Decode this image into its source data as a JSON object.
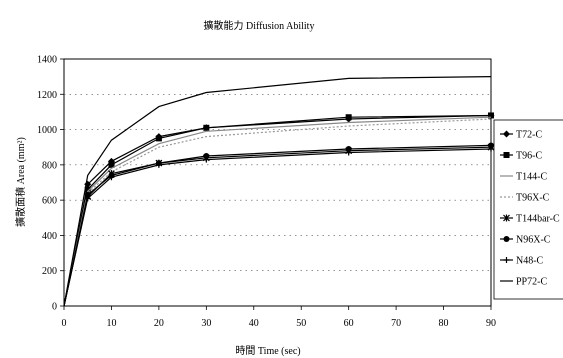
{
  "chart_data": {
    "type": "line",
    "title": "擴散能力 Diffusion Ability",
    "xlabel": "時間 Time (sec)",
    "ylabel": "擴散面積 Area (mm²)",
    "xlim": [
      0,
      90
    ],
    "ylim": [
      0,
      1400
    ],
    "xticks": [
      0,
      10,
      20,
      30,
      40,
      50,
      60,
      70,
      80,
      90
    ],
    "yticks": [
      0,
      200,
      400,
      600,
      800,
      1000,
      1200,
      1400
    ],
    "grid": "horizontal-dotted",
    "legend_position": "right",
    "x": [
      0,
      5,
      10,
      20,
      30,
      60,
      90
    ],
    "series": [
      {
        "name": "T72-C",
        "values": [
          0,
          690,
          820,
          960,
          1010,
          1060,
          1080
        ],
        "color": "#000000",
        "marker": "diamond",
        "dash": ""
      },
      {
        "name": "T96-C",
        "values": [
          0,
          660,
          800,
          950,
          1010,
          1070,
          1080
        ],
        "color": "#000000",
        "marker": "square",
        "dash": ""
      },
      {
        "name": "T144-C",
        "values": [
          0,
          650,
          780,
          920,
          990,
          1040,
          1070
        ],
        "color": "#888888",
        "marker": "none",
        "dash": ""
      },
      {
        "name": "T96X-C",
        "values": [
          0,
          640,
          760,
          900,
          960,
          1020,
          1060
        ],
        "color": "#999999",
        "marker": "none",
        "dash": "2 2"
      },
      {
        "name": "T144bar-C",
        "values": [
          0,
          620,
          750,
          810,
          840,
          880,
          900
        ],
        "color": "#000000",
        "marker": "star",
        "dash": ""
      },
      {
        "name": "N96X-C",
        "values": [
          0,
          630,
          740,
          810,
          850,
          890,
          910
        ],
        "color": "#000000",
        "marker": "circle",
        "dash": ""
      },
      {
        "name": "N48-C",
        "values": [
          0,
          610,
          730,
          800,
          830,
          870,
          890
        ],
        "color": "#000000",
        "marker": "plus",
        "dash": ""
      },
      {
        "name": "PP72-C",
        "values": [
          0,
          740,
          940,
          1130,
          1210,
          1290,
          1300
        ],
        "color": "#000000",
        "marker": "none",
        "dash": ""
      }
    ]
  }
}
